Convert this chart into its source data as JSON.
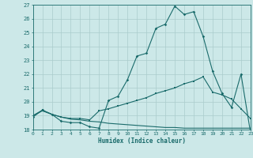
{
  "title": "",
  "xlabel": "Humidex (Indice chaleur)",
  "background_color": "#cce8e8",
  "grid_color": "#aacccc",
  "line_color": "#1a6b6b",
  "xmin": 0,
  "xmax": 23,
  "ymin": 18,
  "ymax": 27,
  "line1_x": [
    0,
    1,
    2,
    3,
    4,
    5,
    6,
    7,
    8,
    9,
    10,
    11,
    12,
    13,
    14,
    15,
    16,
    17,
    18,
    19,
    20,
    21,
    22,
    23
  ],
  "line1_y": [
    18.9,
    19.4,
    19.1,
    18.6,
    18.5,
    18.5,
    18.2,
    18.1,
    20.1,
    20.4,
    21.6,
    23.3,
    23.5,
    25.3,
    25.6,
    26.9,
    26.3,
    26.5,
    24.7,
    22.2,
    20.6,
    19.6,
    22.0,
    17.8
  ],
  "line2_x": [
    0,
    1,
    2,
    3,
    4,
    5,
    6,
    7,
    8,
    9,
    10,
    11,
    12,
    13,
    14,
    15,
    16,
    17,
    18,
    19,
    20,
    21,
    22,
    23
  ],
  "line2_y": [
    19.0,
    19.4,
    19.1,
    18.9,
    18.8,
    18.8,
    18.7,
    19.35,
    19.5,
    19.7,
    19.9,
    20.1,
    20.3,
    20.6,
    20.8,
    21.0,
    21.3,
    21.5,
    21.8,
    20.7,
    20.5,
    20.2,
    19.5,
    18.8
  ],
  "line3_x": [
    0,
    1,
    2,
    3,
    4,
    5,
    6,
    7,
    8,
    9,
    10,
    11,
    12,
    13,
    14,
    15,
    16,
    17,
    18,
    19,
    20,
    21,
    22,
    23
  ],
  "line3_y": [
    19.0,
    19.35,
    19.1,
    18.9,
    18.75,
    18.7,
    18.6,
    18.55,
    18.45,
    18.4,
    18.35,
    18.3,
    18.25,
    18.2,
    18.15,
    18.15,
    18.1,
    18.1,
    18.1,
    18.1,
    18.1,
    18.1,
    18.1,
    18.1
  ]
}
